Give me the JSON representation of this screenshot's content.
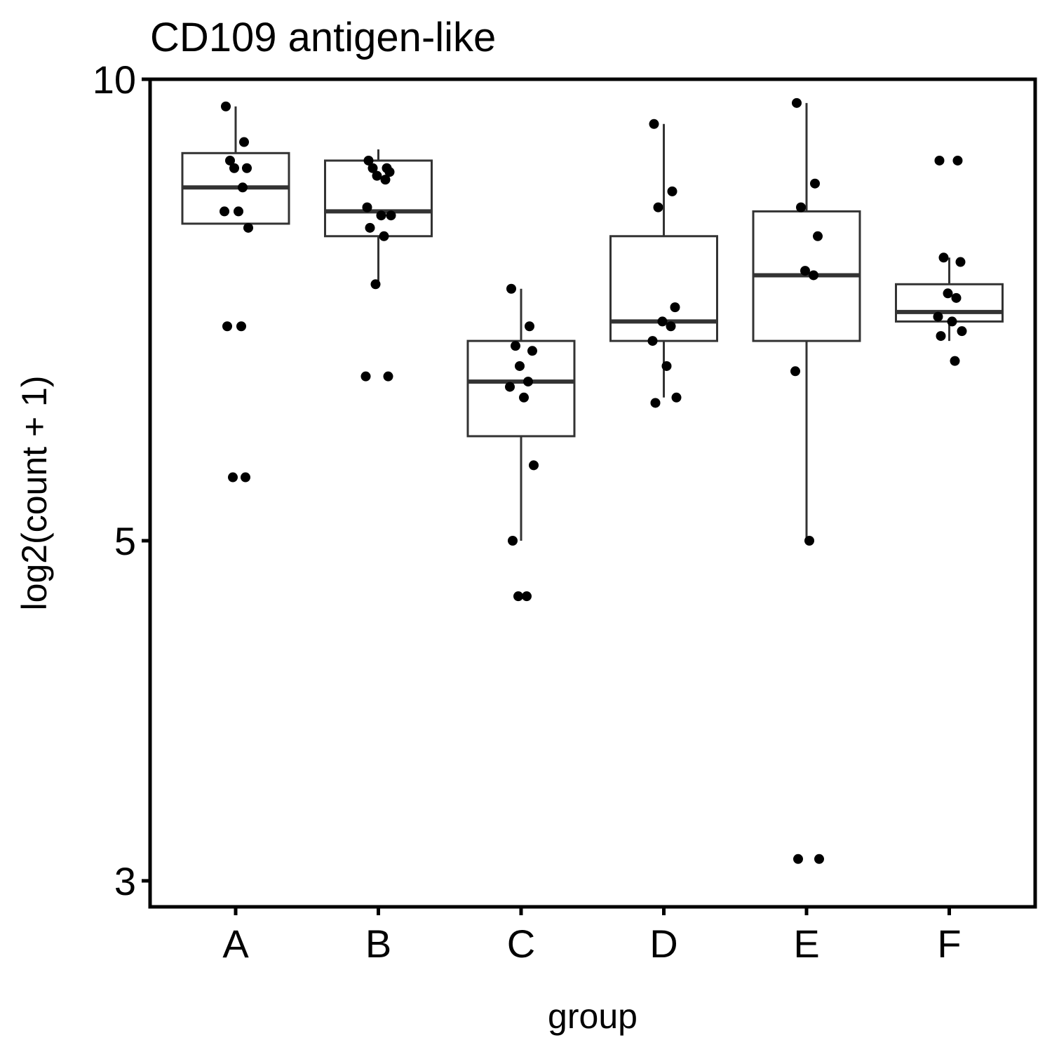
{
  "chart_data": {
    "type": "box",
    "title": "CD109 antigen-like",
    "xlabel": "group",
    "ylabel": "log2(count + 1)",
    "y_scale": "log",
    "ylim": [
      2.9,
      10
    ],
    "yticks": [
      3,
      5,
      10
    ],
    "grid": false,
    "categories": [
      "A",
      "B",
      "C",
      "D",
      "E",
      "F"
    ],
    "boxes": [
      {
        "group": "A",
        "lower_whisker": 8.05,
        "q1": 8.05,
        "median": 8.5,
        "q3": 8.95,
        "upper_whisker": 9.6
      },
      {
        "group": "B",
        "lower_whisker": 7.35,
        "q1": 7.9,
        "median": 8.2,
        "q3": 8.85,
        "upper_whisker": 9.0
      },
      {
        "group": "C",
        "lower_whisker": 5.0,
        "q1": 5.85,
        "median": 6.35,
        "q3": 6.75,
        "upper_whisker": 7.3
      },
      {
        "group": "D",
        "lower_whisker": 6.2,
        "q1": 6.75,
        "median": 6.95,
        "q3": 7.9,
        "upper_whisker": 9.35
      },
      {
        "group": "E",
        "lower_whisker": 5.0,
        "q1": 6.75,
        "median": 7.45,
        "q3": 8.2,
        "upper_whisker": 9.65
      },
      {
        "group": "F",
        "lower_whisker": 6.75,
        "q1": 6.95,
        "median": 7.05,
        "q3": 7.35,
        "upper_whisker": 7.65
      }
    ],
    "points": [
      {
        "group": "A",
        "values": [
          9.6,
          9.1,
          8.85,
          8.75,
          8.75,
          8.5,
          8.2,
          8.2,
          8.0,
          6.9,
          6.9,
          5.5,
          5.5
        ]
      },
      {
        "group": "B",
        "values": [
          8.85,
          8.75,
          8.75,
          8.7,
          8.65,
          8.6,
          8.25,
          8.15,
          8.15,
          8.0,
          7.9,
          7.35,
          6.4,
          6.4
        ]
      },
      {
        "group": "C",
        "values": [
          7.3,
          6.9,
          6.7,
          6.65,
          6.5,
          6.35,
          6.3,
          6.2,
          5.6,
          5.0,
          4.6,
          4.6
        ]
      },
      {
        "group": "D",
        "values": [
          9.35,
          8.45,
          8.25,
          7.1,
          6.95,
          6.9,
          6.75,
          6.5,
          6.2,
          6.15
        ]
      },
      {
        "group": "E",
        "values": [
          9.65,
          8.55,
          8.25,
          7.9,
          7.5,
          7.45,
          6.45,
          5.0,
          3.1,
          3.1
        ]
      },
      {
        "group": "F",
        "values": [
          8.85,
          8.85,
          7.65,
          7.6,
          7.25,
          7.2,
          7.0,
          6.95,
          6.85,
          6.8,
          6.55
        ]
      }
    ]
  }
}
